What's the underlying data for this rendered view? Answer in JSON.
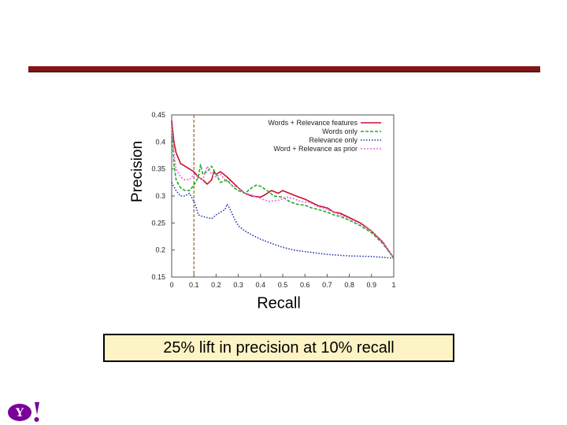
{
  "slide": {
    "callout_text": "25% lift in precision at 10% recall",
    "accent_color": "#7a1616",
    "callout_bg": "#fdf3c4",
    "logo_text": "Y!",
    "logo_color": "#7b0099"
  },
  "chart_data": {
    "type": "line",
    "title": "",
    "xlabel": "Recall",
    "ylabel": "Precision",
    "xlim": [
      0,
      1
    ],
    "ylim": [
      0.15,
      0.45
    ],
    "xticks": [
      "0",
      "0.1",
      "0.2",
      "0.3",
      "0.4",
      "0.5",
      "0.6",
      "0.7",
      "0.8",
      "0.9",
      "1"
    ],
    "yticks": [
      "0.15",
      "0.2",
      "0.25",
      "0.3",
      "0.35",
      "0.4",
      "0.45"
    ],
    "grid": false,
    "legend_position": "top-right",
    "vertical_marker": {
      "x": 0.1,
      "color": "#8a6a1a"
    },
    "series": [
      {
        "name": "Words + Relevance features",
        "color": "#c8102e",
        "dash": "solid",
        "points": [
          [
            0,
            0.44
          ],
          [
            0.01,
            0.4
          ],
          [
            0.02,
            0.38
          ],
          [
            0.04,
            0.36
          ],
          [
            0.06,
            0.355
          ],
          [
            0.08,
            0.35
          ],
          [
            0.1,
            0.345
          ],
          [
            0.12,
            0.335
          ],
          [
            0.14,
            0.33
          ],
          [
            0.16,
            0.322
          ],
          [
            0.18,
            0.33
          ],
          [
            0.19,
            0.345
          ],
          [
            0.2,
            0.34
          ],
          [
            0.22,
            0.345
          ],
          [
            0.25,
            0.335
          ],
          [
            0.28,
            0.323
          ],
          [
            0.3,
            0.315
          ],
          [
            0.33,
            0.305
          ],
          [
            0.36,
            0.3
          ],
          [
            0.4,
            0.298
          ],
          [
            0.42,
            0.302
          ],
          [
            0.45,
            0.31
          ],
          [
            0.48,
            0.305
          ],
          [
            0.5,
            0.31
          ],
          [
            0.53,
            0.305
          ],
          [
            0.56,
            0.3
          ],
          [
            0.6,
            0.294
          ],
          [
            0.63,
            0.288
          ],
          [
            0.66,
            0.282
          ],
          [
            0.7,
            0.278
          ],
          [
            0.73,
            0.27
          ],
          [
            0.76,
            0.268
          ],
          [
            0.8,
            0.26
          ],
          [
            0.85,
            0.25
          ],
          [
            0.9,
            0.235
          ],
          [
            0.95,
            0.215
          ],
          [
            1,
            0.185
          ]
        ]
      },
      {
        "name": "Words only",
        "color": "#22aa22",
        "dash": "4,2",
        "points": [
          [
            0,
            0.43
          ],
          [
            0.01,
            0.36
          ],
          [
            0.02,
            0.33
          ],
          [
            0.04,
            0.315
          ],
          [
            0.06,
            0.31
          ],
          [
            0.08,
            0.31
          ],
          [
            0.1,
            0.32
          ],
          [
            0.12,
            0.335
          ],
          [
            0.13,
            0.358
          ],
          [
            0.14,
            0.34
          ],
          [
            0.16,
            0.345
          ],
          [
            0.18,
            0.355
          ],
          [
            0.2,
            0.34
          ],
          [
            0.22,
            0.325
          ],
          [
            0.25,
            0.33
          ],
          [
            0.28,
            0.315
          ],
          [
            0.3,
            0.31
          ],
          [
            0.33,
            0.305
          ],
          [
            0.36,
            0.315
          ],
          [
            0.38,
            0.32
          ],
          [
            0.4,
            0.318
          ],
          [
            0.43,
            0.31
          ],
          [
            0.46,
            0.3
          ],
          [
            0.5,
            0.298
          ],
          [
            0.53,
            0.29
          ],
          [
            0.56,
            0.285
          ],
          [
            0.6,
            0.283
          ],
          [
            0.63,
            0.278
          ],
          [
            0.66,
            0.275
          ],
          [
            0.7,
            0.27
          ],
          [
            0.73,
            0.265
          ],
          [
            0.76,
            0.262
          ],
          [
            0.8,
            0.255
          ],
          [
            0.85,
            0.245
          ],
          [
            0.9,
            0.232
          ],
          [
            0.95,
            0.212
          ],
          [
            1,
            0.185
          ]
        ]
      },
      {
        "name": "Relevance only",
        "color": "#2233aa",
        "dash": "1.5,2",
        "points": [
          [
            0,
            0.325
          ],
          [
            0.02,
            0.31
          ],
          [
            0.04,
            0.3
          ],
          [
            0.06,
            0.3
          ],
          [
            0.08,
            0.305
          ],
          [
            0.1,
            0.29
          ],
          [
            0.11,
            0.28
          ],
          [
            0.12,
            0.265
          ],
          [
            0.14,
            0.262
          ],
          [
            0.16,
            0.26
          ],
          [
            0.18,
            0.258
          ],
          [
            0.2,
            0.265
          ],
          [
            0.22,
            0.27
          ],
          [
            0.24,
            0.275
          ],
          [
            0.25,
            0.285
          ],
          [
            0.26,
            0.278
          ],
          [
            0.28,
            0.26
          ],
          [
            0.3,
            0.245
          ],
          [
            0.33,
            0.235
          ],
          [
            0.36,
            0.228
          ],
          [
            0.4,
            0.22
          ],
          [
            0.45,
            0.212
          ],
          [
            0.5,
            0.205
          ],
          [
            0.55,
            0.2
          ],
          [
            0.6,
            0.197
          ],
          [
            0.7,
            0.192
          ],
          [
            0.8,
            0.189
          ],
          [
            0.9,
            0.188
          ],
          [
            1,
            0.185
          ]
        ]
      },
      {
        "name": "Word + Relevance as prior",
        "color": "#e868d8",
        "dash": "2,2",
        "points": [
          [
            0,
            0.43
          ],
          [
            0.01,
            0.38
          ],
          [
            0.02,
            0.35
          ],
          [
            0.04,
            0.335
          ],
          [
            0.06,
            0.33
          ],
          [
            0.08,
            0.33
          ],
          [
            0.1,
            0.34
          ],
          [
            0.12,
            0.335
          ],
          [
            0.14,
            0.33
          ],
          [
            0.16,
            0.355
          ],
          [
            0.18,
            0.34
          ],
          [
            0.2,
            0.335
          ],
          [
            0.22,
            0.34
          ],
          [
            0.24,
            0.33
          ],
          [
            0.27,
            0.32
          ],
          [
            0.3,
            0.315
          ],
          [
            0.33,
            0.305
          ],
          [
            0.36,
            0.302
          ],
          [
            0.4,
            0.295
          ],
          [
            0.44,
            0.29
          ],
          [
            0.48,
            0.292
          ],
          [
            0.52,
            0.298
          ],
          [
            0.55,
            0.295
          ],
          [
            0.58,
            0.29
          ],
          [
            0.62,
            0.288
          ],
          [
            0.66,
            0.28
          ],
          [
            0.7,
            0.275
          ],
          [
            0.73,
            0.27
          ],
          [
            0.76,
            0.265
          ],
          [
            0.8,
            0.258
          ],
          [
            0.85,
            0.248
          ],
          [
            0.9,
            0.235
          ],
          [
            0.95,
            0.214
          ],
          [
            1,
            0.185
          ]
        ]
      }
    ]
  }
}
